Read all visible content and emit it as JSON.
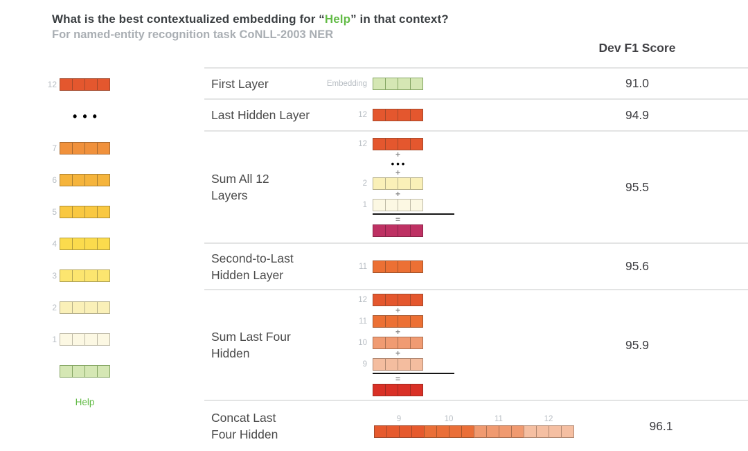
{
  "title": {
    "prefix": "What is the best contextualized embedding for ",
    "quote_open": "“",
    "highlight": "Help",
    "quote_close": "”",
    "suffix": " in that context?",
    "highlight_color": "#62BB46"
  },
  "subtitle": "For named-entity recognition task CoNLL-2003 NER",
  "score_header": "Dev F1 Score",
  "symbols": {
    "plus": "+",
    "equals": "=",
    "dots_large": "•••",
    "dots_small": "•••"
  },
  "colors": {
    "separator": "#E3E4E4",
    "label_gray": "#B7BDC3",
    "text_dark": "#3F3F43",
    "row_label": "#4A4A4A",
    "sum_line": "#151515",
    "help_green": "#62BB46"
  },
  "sidebar": {
    "word": "Help",
    "rows": [
      {
        "type": "strip",
        "label": "12",
        "fill": "#E4572E",
        "border": "#A3482A"
      },
      {
        "type": "dots"
      },
      {
        "type": "strip",
        "label": "7",
        "fill": "#F0913C",
        "border": "#A8692F"
      },
      {
        "type": "strip",
        "label": "6",
        "fill": "#F5B43C",
        "border": "#AB8030"
      },
      {
        "type": "strip",
        "label": "5",
        "fill": "#F9C841",
        "border": "#AE8E34"
      },
      {
        "type": "strip",
        "label": "4",
        "fill": "#FBDB4D",
        "border": "#B09B3D"
      },
      {
        "type": "strip",
        "label": "3",
        "fill": "#FCE56F",
        "border": "#B2A455"
      },
      {
        "type": "strip",
        "label": "2",
        "fill": "#FAF0B8",
        "border": "#B5AF8A"
      },
      {
        "type": "strip",
        "label": "1",
        "fill": "#FCF8E3",
        "border": "#BDB9A6"
      },
      {
        "type": "strip",
        "label": "",
        "fill": "#D5E7B4",
        "border": "#84A563"
      }
    ]
  },
  "table": {
    "rows": [
      {
        "label_lines": [
          "First Layer"
        ],
        "score": "91.0",
        "viz": {
          "type": "single",
          "label": "Embedding",
          "fill": "#D5E7B4",
          "border": "#84A563"
        }
      },
      {
        "label_lines": [
          "Last Hidden Layer"
        ],
        "score": "94.9",
        "viz": {
          "type": "single",
          "label": "12",
          "fill": "#E4572E",
          "border": "#A3482A"
        }
      },
      {
        "label_lines": [
          "Sum All 12",
          "Layers"
        ],
        "score": "95.5",
        "viz": {
          "type": "sum",
          "operands": [
            {
              "label": "12",
              "fill": "#E4572E",
              "border": "#A3482A"
            },
            {
              "dots": true
            },
            {
              "label": "2",
              "fill": "#FAF0B8",
              "border": "#B5AF8A"
            },
            {
              "label": "1",
              "fill": "#FCF8E3",
              "border": "#BDB9A6"
            }
          ],
          "result": {
            "fill": "#BE3163",
            "border": "#8A2449"
          }
        }
      },
      {
        "label_lines": [
          "Second-to-Last",
          "Hidden Layer"
        ],
        "score": "95.6",
        "viz": {
          "type": "single",
          "label": "11",
          "fill": "#EC7034",
          "border": "#A5552B"
        }
      },
      {
        "label_lines": [
          "Sum Last Four",
          "Hidden"
        ],
        "score": "95.9",
        "viz": {
          "type": "sum",
          "operands": [
            {
              "label": "12",
              "fill": "#E4572E",
              "border": "#A3482A"
            },
            {
              "label": "11",
              "fill": "#EC7034",
              "border": "#A5552B"
            },
            {
              "label": "10",
              "fill": "#F09B72",
              "border": "#AB6F50"
            },
            {
              "label": "9",
              "fill": "#F4BD9F",
              "border": "#B08770"
            }
          ],
          "result": {
            "fill": "#D93026",
            "border": "#9E2A20"
          }
        }
      },
      {
        "label_lines": [
          "Concat Last",
          "Four Hidden"
        ],
        "score": "96.1",
        "viz": {
          "type": "concat",
          "cells_per_group": 4,
          "groups": [
            {
              "label": "9",
              "fill": "#E65A2E",
              "border": "#A3482A"
            },
            {
              "label": "10",
              "fill": "#EA6F38",
              "border": "#A5552B"
            },
            {
              "label": "11",
              "fill": "#F09A70",
              "border": "#AB6F50"
            },
            {
              "label": "12",
              "fill": "#F5BFA2",
              "border": "#B08770"
            }
          ]
        }
      }
    ]
  }
}
